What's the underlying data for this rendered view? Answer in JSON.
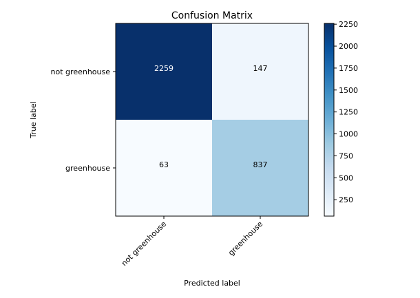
{
  "chart_data": {
    "type": "heatmap",
    "title": "Confusion Matrix",
    "xlabel": "Predicted label",
    "ylabel": "True label",
    "x_categories": [
      "not greenhouse",
      "greenhouse"
    ],
    "y_categories": [
      "not greenhouse",
      "greenhouse"
    ],
    "values": [
      [
        2259,
        147
      ],
      [
        63,
        837
      ]
    ],
    "colormap": "Blues",
    "colorbar": {
      "ticks": [
        250,
        500,
        750,
        1000,
        1250,
        1500,
        1750,
        2000,
        2250
      ],
      "vmin": 63,
      "vmax": 2259
    },
    "grid": false
  }
}
